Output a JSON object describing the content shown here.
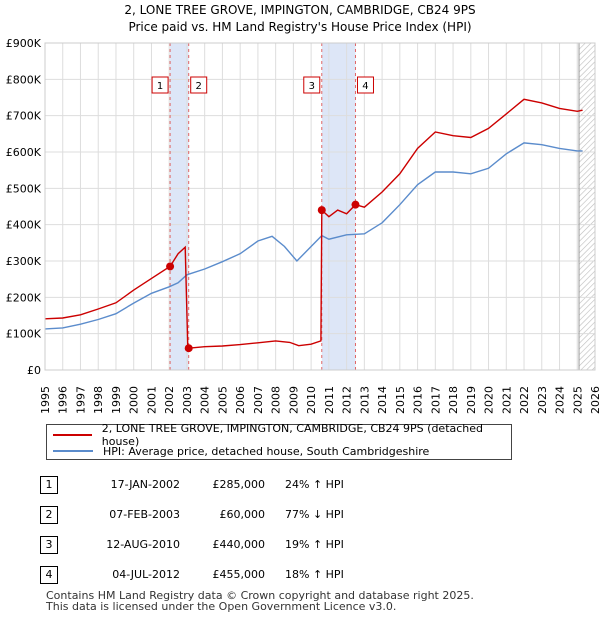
{
  "chart_data": {
    "type": "line",
    "title": "2, LONE TREE GROVE, IMPINGTON, CAMBRIDGE, CB24 9PS",
    "subtitle": "Price paid vs. HM Land Registry's House Price Index (HPI)",
    "xlabel": "",
    "ylabel": "",
    "xlim": [
      1995,
      2026
    ],
    "ylim": [
      0,
      900000
    ],
    "y_ticks": [
      {
        "value": 0,
        "label": "£0"
      },
      {
        "value": 100000,
        "label": "£100K"
      },
      {
        "value": 200000,
        "label": "£200K"
      },
      {
        "value": 300000,
        "label": "£300K"
      },
      {
        "value": 400000,
        "label": "£400K"
      },
      {
        "value": 500000,
        "label": "£500K"
      },
      {
        "value": 600000,
        "label": "£600K"
      },
      {
        "value": 700000,
        "label": "£700K"
      },
      {
        "value": 800000,
        "label": "£800K"
      },
      {
        "value": 900000,
        "label": "£900K"
      }
    ],
    "x_ticks": [
      "1995",
      "1996",
      "1997",
      "1998",
      "1999",
      "2000",
      "2001",
      "2002",
      "2003",
      "2004",
      "2005",
      "2006",
      "2007",
      "2008",
      "2009",
      "2010",
      "2011",
      "2012",
      "2013",
      "2014",
      "2015",
      "2016",
      "2017",
      "2018",
      "2019",
      "2020",
      "2021",
      "2022",
      "2023",
      "2024",
      "2025",
      "2026"
    ],
    "grid": true,
    "shaded_periods": [
      [
        2002.05,
        2003.1
      ],
      [
        2010.6,
        2012.5
      ]
    ],
    "future_hatch_from": 2025.1,
    "series": [
      {
        "name": "2, LONE TREE GROVE, IMPINGTON, CAMBRIDGE, CB24 9PS (detached house)",
        "color": "#cc0000",
        "points": [
          [
            1995.0,
            141000
          ],
          [
            1996.0,
            143000
          ],
          [
            1997.0,
            152000
          ],
          [
            1998.0,
            168000
          ],
          [
            1999.0,
            185000
          ],
          [
            2000.0,
            220000
          ],
          [
            2001.0,
            252000
          ],
          [
            2002.05,
            285000
          ],
          [
            2002.5,
            320000
          ],
          [
            2002.9,
            338000
          ],
          [
            2003.05,
            60000
          ],
          [
            2003.1,
            60000
          ],
          [
            2004.0,
            64000
          ],
          [
            2005.0,
            66000
          ],
          [
            2006.0,
            70000
          ],
          [
            2007.0,
            75000
          ],
          [
            2008.0,
            80000
          ],
          [
            2008.8,
            76000
          ],
          [
            2009.3,
            67000
          ],
          [
            2010.0,
            71000
          ],
          [
            2010.55,
            80000
          ],
          [
            2010.6,
            440000
          ],
          [
            2011.0,
            422000
          ],
          [
            2011.5,
            440000
          ],
          [
            2012.0,
            430000
          ],
          [
            2012.5,
            455000
          ],
          [
            2013.0,
            448000
          ],
          [
            2014.0,
            490000
          ],
          [
            2015.0,
            540000
          ],
          [
            2016.0,
            610000
          ],
          [
            2017.0,
            655000
          ],
          [
            2018.0,
            645000
          ],
          [
            2019.0,
            640000
          ],
          [
            2020.0,
            665000
          ],
          [
            2021.0,
            705000
          ],
          [
            2022.0,
            745000
          ],
          [
            2023.0,
            735000
          ],
          [
            2024.0,
            720000
          ],
          [
            2025.0,
            712000
          ],
          [
            2025.3,
            715000
          ]
        ]
      },
      {
        "name": "HPI: Average price, detached house, South Cambridgeshire",
        "color": "#5b8ccc",
        "points": [
          [
            1995.0,
            113000
          ],
          [
            1996.0,
            116000
          ],
          [
            1997.0,
            126000
          ],
          [
            1998.0,
            139000
          ],
          [
            1999.0,
            155000
          ],
          [
            2000.0,
            184000
          ],
          [
            2001.0,
            211000
          ],
          [
            2002.0,
            229000
          ],
          [
            2002.5,
            240000
          ],
          [
            2003.0,
            262000
          ],
          [
            2004.0,
            278000
          ],
          [
            2005.0,
            298000
          ],
          [
            2006.0,
            320000
          ],
          [
            2007.0,
            355000
          ],
          [
            2007.8,
            368000
          ],
          [
            2008.5,
            340000
          ],
          [
            2009.2,
            300000
          ],
          [
            2010.0,
            340000
          ],
          [
            2010.6,
            370000
          ],
          [
            2011.0,
            360000
          ],
          [
            2012.0,
            372000
          ],
          [
            2013.0,
            375000
          ],
          [
            2014.0,
            405000
          ],
          [
            2015.0,
            455000
          ],
          [
            2016.0,
            510000
          ],
          [
            2017.0,
            545000
          ],
          [
            2018.0,
            545000
          ],
          [
            2019.0,
            540000
          ],
          [
            2020.0,
            555000
          ],
          [
            2021.0,
            595000
          ],
          [
            2022.0,
            625000
          ],
          [
            2023.0,
            620000
          ],
          [
            2024.0,
            610000
          ],
          [
            2025.0,
            603000
          ],
          [
            2025.3,
            603000
          ]
        ]
      }
    ],
    "transactions": [
      {
        "marker": "1",
        "x": 2002.05,
        "price_value": 285000,
        "date": "17-JAN-2002",
        "price": "£285,000",
        "hpi": "24% ↑ HPI"
      },
      {
        "marker": "2",
        "x": 2003.1,
        "price_value": 60000,
        "date": "07-FEB-2003",
        "price": "£60,000",
        "hpi": "77% ↓ HPI"
      },
      {
        "marker": "3",
        "x": 2010.6,
        "price_value": 440000,
        "date": "12-AUG-2010",
        "price": "£440,000",
        "hpi": "19% ↑ HPI"
      },
      {
        "marker": "4",
        "x": 2012.5,
        "price_value": 455000,
        "date": "04-JUL-2012",
        "price": "£455,000",
        "hpi": "18% ↑ HPI"
      }
    ]
  },
  "legend": {
    "property_label": "2, LONE TREE GROVE, IMPINGTON, CAMBRIDGE, CB24 9PS (detached house)",
    "hpi_label": "HPI: Average price, detached house, South Cambridgeshire",
    "property_color": "#cc0000",
    "hpi_color": "#5b8ccc"
  },
  "footer": {
    "line1": "Contains HM Land Registry data © Crown copyright and database right 2025.",
    "line2": "This data is licensed under the Open Government Licence v3.0."
  }
}
